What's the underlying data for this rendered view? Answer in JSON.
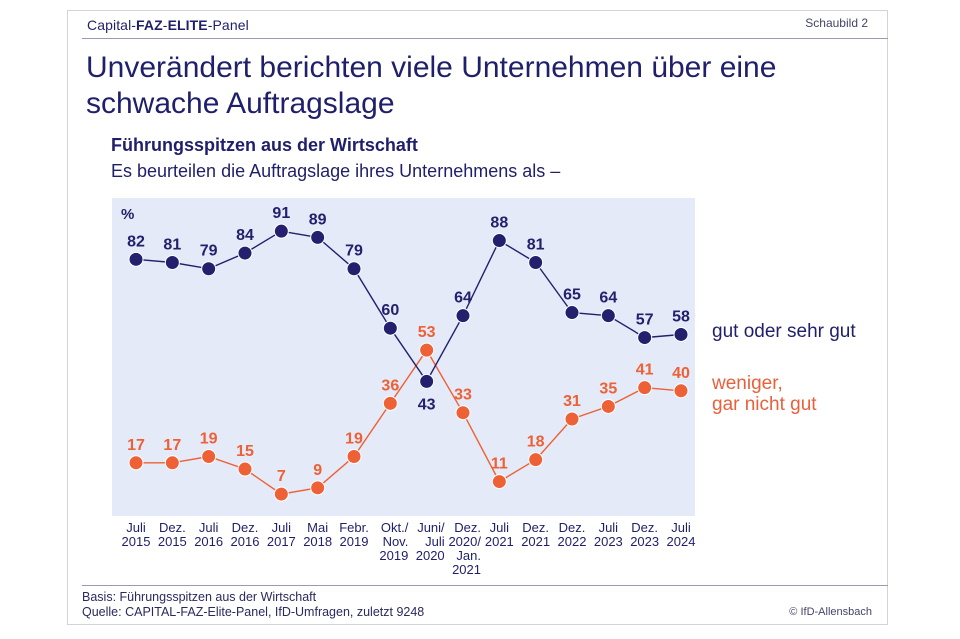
{
  "header": {
    "brand_parts": [
      "Capital-",
      "FAZ",
      "-",
      "ELITE",
      "-Panel"
    ],
    "figure_label": "Schaubild 2",
    "title": "Unverändert berichten viele Unternehmen über eine schwache Auftragslage",
    "subtitle": "Führungsspitzen aus der Wirtschaft",
    "question": "Es beurteilen die Auftragslage ihres Unternehmens als –"
  },
  "footer": {
    "basis": "Basis: Führungsspitzen aus der Wirtschaft",
    "source": "Quelle: CAPITAL-FAZ-Elite-Panel, IfD-Umfragen, zuletzt 9248",
    "copyright": "© IfD-Allensbach"
  },
  "colors": {
    "good": "#24206e",
    "bad": "#ee6035",
    "plot_background": "#e4eaf7",
    "text": "#1f1f6b"
  },
  "chart_data": {
    "type": "line",
    "title": "Unverändert berichten viele Unternehmen über eine schwache Auftragslage",
    "subtitle": "Führungsspitzen aus der Wirtschaft – Es beurteilen die Auftragslage ihres Unternehmens als –",
    "unit_label": "%",
    "xlabel": "",
    "ylabel": "%",
    "ylim": [
      0,
      100
    ],
    "grid": false,
    "legend_placement": "right",
    "categories": [
      "Juli\n2015",
      "Dez.\n2015",
      "Juli\n2016",
      "Dez.\n2016",
      "Juli\n2017",
      "Mai\n2018",
      "Febr.\n2019",
      "Okt./\nNov.\n2019",
      "Juni/\nJuli\n2020",
      "Dez.\n2020/\nJan.\n2021",
      "Juli\n2021",
      "Dez.\n2021",
      "Dez.\n2022",
      "Juli\n2023",
      "Dez.\n2023",
      "Juli\n2024"
    ],
    "series": [
      {
        "name": "gut oder sehr gut",
        "color": "#24206e",
        "values": [
          82,
          81,
          79,
          84,
          91,
          89,
          79,
          60,
          43,
          64,
          88,
          81,
          65,
          64,
          57,
          58
        ],
        "label_below": [
          false,
          false,
          false,
          false,
          false,
          false,
          false,
          false,
          true,
          false,
          false,
          false,
          false,
          false,
          false,
          false
        ]
      },
      {
        "name": "weniger,\ngar nicht gut",
        "color": "#ee6035",
        "values": [
          17,
          17,
          19,
          15,
          7,
          9,
          19,
          36,
          53,
          33,
          11,
          18,
          31,
          35,
          41,
          40
        ],
        "label_below": [
          false,
          false,
          false,
          false,
          false,
          false,
          false,
          false,
          false,
          false,
          false,
          false,
          false,
          false,
          false,
          false
        ]
      }
    ]
  }
}
